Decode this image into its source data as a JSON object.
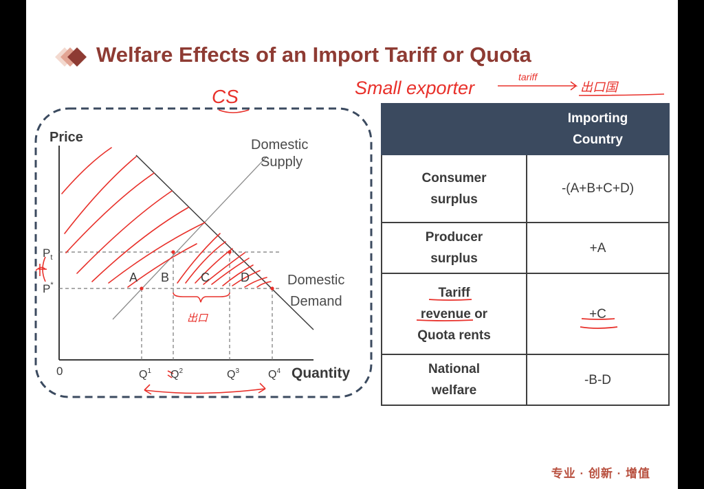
{
  "slide": {
    "title": "Welfare Effects of an Import Tariff or Quota",
    "footer": "专业 · 创新 · 增值"
  },
  "graph": {
    "y_axis_label": "Price",
    "x_axis_label": "Quantity",
    "origin_label": "0",
    "supply_label_line1": "Domestic",
    "supply_label_line2": "Supply",
    "demand_label_line1": "Domestic",
    "demand_label_line2": "Demand",
    "price_tariff": "P",
    "price_tariff_sub": "t",
    "price_world": "P",
    "price_world_sup": "*",
    "q1": "Q",
    "q1_sup": "1",
    "q2": "Q",
    "q2_sup": "2",
    "q3": "Q",
    "q3_sup": "3",
    "q4": "Q",
    "q4_sup": "4",
    "area_a": "A",
    "area_b": "B",
    "area_c": "C",
    "area_d": "D"
  },
  "annotations": {
    "cs": "CS",
    "small_exporter": "Small exporter",
    "arrow_word": "tariff",
    "t_mark": "t",
    "import_word": "出口",
    "far_right": "出口国"
  },
  "table": {
    "header_empty": "",
    "header_line1": "Importing",
    "header_line2": "Country",
    "rows": [
      {
        "label_line1": "Consumer",
        "label_line2": "surplus",
        "value": "-(A+B+C+D)"
      },
      {
        "label_line1": "Producer",
        "label_line2": "surplus",
        "value": "+A"
      },
      {
        "label_line1": "Tariff",
        "label_line2": "revenue or",
        "label_line3": "Quota rents",
        "value": "+C"
      },
      {
        "label_line1": "National",
        "label_line2": "welfare",
        "value": "-B-D"
      }
    ]
  },
  "colors": {
    "title": "#8e3b33",
    "table_header": "#3b4a5f",
    "ink": "#e8302a",
    "axis": "#3a3a3a"
  }
}
